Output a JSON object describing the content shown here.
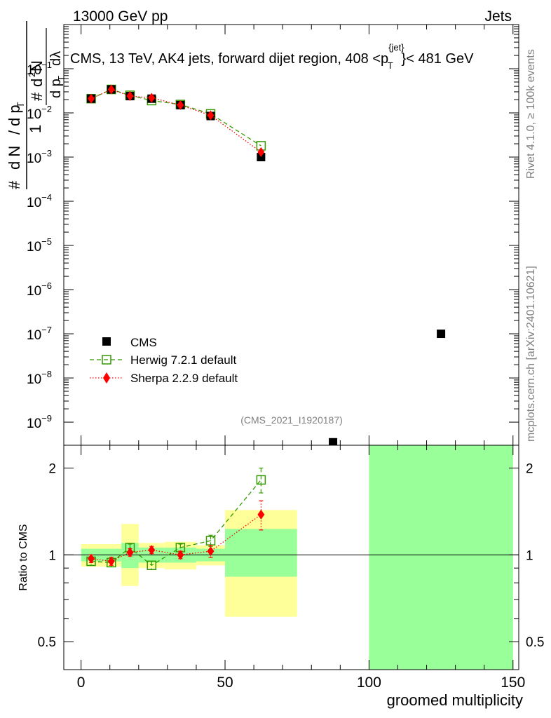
{
  "header": {
    "left": "13000 GeV pp",
    "right": "Jets"
  },
  "side_texts": {
    "rivet": "Rivet 4.1.0, ≥ 100k events",
    "mcplots": "mcplots.cern.ch [arXiv:2401.10621]"
  },
  "colors": {
    "data": "#000000",
    "herwig": "#339900",
    "sherpa": "#ff0000",
    "band_inner": "#99ff99",
    "band_outer": "#ffff99"
  },
  "chart_data": [
    {
      "type": "scatter",
      "panel": "main",
      "title": "CMS, 13 TeV, AK4 jets, forward dijet region, 408 < p_T^{jet} < 481 GeV",
      "title_parts": {
        "prefix": "CMS, 13 TeV, AK4 jets, forward dijet region, 408 <p",
        "sup": "{jet}",
        "sub": "T",
        "suffix": "}< 481 GeV"
      },
      "ylabel_parts": {
        "one": "1",
        "hash": "#",
        "d2n": "d",
        "two": "2",
        "n": "N",
        "dn": "d N",
        "slash": "/",
        "dpt": "d p",
        "t": "T",
        "dlambda": "dλ"
      },
      "yscale": "log",
      "ylim": [
        3e-10,
        1
      ],
      "xlim": [
        -6,
        152
      ],
      "ytick_labels": [
        {
          "value": 0.1,
          "base": "10",
          "exp": "−1"
        },
        {
          "value": 0.01,
          "base": "10",
          "exp": "−2"
        },
        {
          "value": 0.001,
          "base": "10",
          "exp": "−3"
        },
        {
          "value": 0.0001,
          "base": "10",
          "exp": "−4"
        },
        {
          "value": 1e-05,
          "base": "10",
          "exp": "−5"
        },
        {
          "value": 1e-06,
          "base": "10",
          "exp": "−6"
        },
        {
          "value": 1e-07,
          "base": "10",
          "exp": "−7"
        },
        {
          "value": 1e-08,
          "base": "10",
          "exp": "−8"
        },
        {
          "value": 1e-09,
          "base": "10",
          "exp": "−9"
        }
      ],
      "bin_edges": [
        0,
        7,
        14,
        20,
        29,
        40,
        50,
        75,
        100,
        150
      ],
      "series": [
        {
          "name": "CMS",
          "style": "data",
          "x": [
            3.5,
            10.5,
            17,
            24.5,
            34.5,
            45,
            62.5,
            87.5,
            125
          ],
          "y": [
            0.021,
            0.034,
            0.024,
            0.021,
            0.015,
            0.0085,
            0.001,
            3.5e-10,
            1e-07
          ]
        },
        {
          "name": "Herwig 7.2.1 default",
          "style": "herwig",
          "x": [
            3.5,
            10.5,
            17,
            24.5,
            34.5,
            45,
            62.5
          ],
          "y": [
            0.021,
            0.034,
            0.025,
            0.019,
            0.0155,
            0.0095,
            0.0018
          ],
          "yerr": [
            0.0005,
            0.0008,
            0.0006,
            0.0005,
            0.0004,
            0.0003,
            0.0002
          ]
        },
        {
          "name": "Sherpa 2.2.9 default",
          "style": "sherpa",
          "x": [
            3.5,
            10.5,
            17,
            24.5,
            34.5,
            45,
            62.5
          ],
          "y": [
            0.021,
            0.034,
            0.024,
            0.022,
            0.015,
            0.0088,
            0.0013
          ],
          "yerr": [
            0.0005,
            0.0008,
            0.0006,
            0.0005,
            0.0004,
            0.0003,
            0.0002
          ]
        }
      ],
      "legend": [
        "CMS",
        "Herwig 7.2.1 default",
        "Sherpa 2.2.9 default"
      ],
      "legend_position": "bottom-left",
      "annotation": "(CMS_2021_I1920187)"
    },
    {
      "type": "scatter",
      "panel": "ratio",
      "xlabel": "groomed multiplicity",
      "ylabel": "Ratio to CMS",
      "yscale": "log",
      "ylim": [
        0.4,
        2.4
      ],
      "xlim": [
        -6,
        152
      ],
      "xticks": [
        0,
        50,
        100,
        150
      ],
      "xtick_labels": [
        "0",
        "50",
        "100",
        "150"
      ],
      "yticks": [
        0.5,
        1,
        2
      ],
      "ytick_labels": [
        "0.5",
        "1",
        "2"
      ],
      "reference_line": 1,
      "bands": [
        {
          "x0": 0,
          "x1": 14,
          "inner": [
            0.95,
            1.05
          ],
          "outer": [
            0.91,
            1.09
          ]
        },
        {
          "x0": 14,
          "x1": 20,
          "inner": [
            0.9,
            1.1
          ],
          "outer": [
            0.78,
            1.28
          ]
        },
        {
          "x0": 20,
          "x1": 29,
          "inner": [
            0.94,
            1.06
          ],
          "outer": [
            0.9,
            1.1
          ]
        },
        {
          "x0": 29,
          "x1": 40,
          "inner": [
            0.94,
            1.06
          ],
          "outer": [
            0.89,
            1.11
          ]
        },
        {
          "x0": 40,
          "x1": 50,
          "inner": [
            0.95,
            1.05
          ],
          "outer": [
            0.92,
            1.08
          ]
        },
        {
          "x0": 50,
          "x1": 75,
          "inner": [
            0.84,
            1.23
          ],
          "outer": [
            0.61,
            1.43
          ]
        },
        {
          "x0": 100,
          "x1": 150,
          "inner": [
            0.4,
            2.4
          ],
          "outer": [
            0.4,
            2.4
          ]
        }
      ],
      "series": [
        {
          "name": "Herwig 7.2.1 default",
          "style": "herwig",
          "x": [
            3.5,
            10.5,
            17,
            24.5,
            34.5,
            45,
            62.5
          ],
          "y": [
            0.95,
            0.94,
            1.06,
            0.92,
            1.06,
            1.12,
            1.82
          ],
          "yerr": [
            0.03,
            0.03,
            0.03,
            0.03,
            0.03,
            0.05,
            0.18
          ]
        },
        {
          "name": "Sherpa 2.2.9 default",
          "style": "sherpa",
          "x": [
            3.5,
            10.5,
            17,
            24.5,
            34.5,
            45,
            62.5
          ],
          "y": [
            0.97,
            0.95,
            1.02,
            1.04,
            1.0,
            1.03,
            1.38
          ],
          "yerr": [
            0.03,
            0.03,
            0.03,
            0.03,
            0.03,
            0.05,
            0.16
          ]
        }
      ]
    }
  ]
}
